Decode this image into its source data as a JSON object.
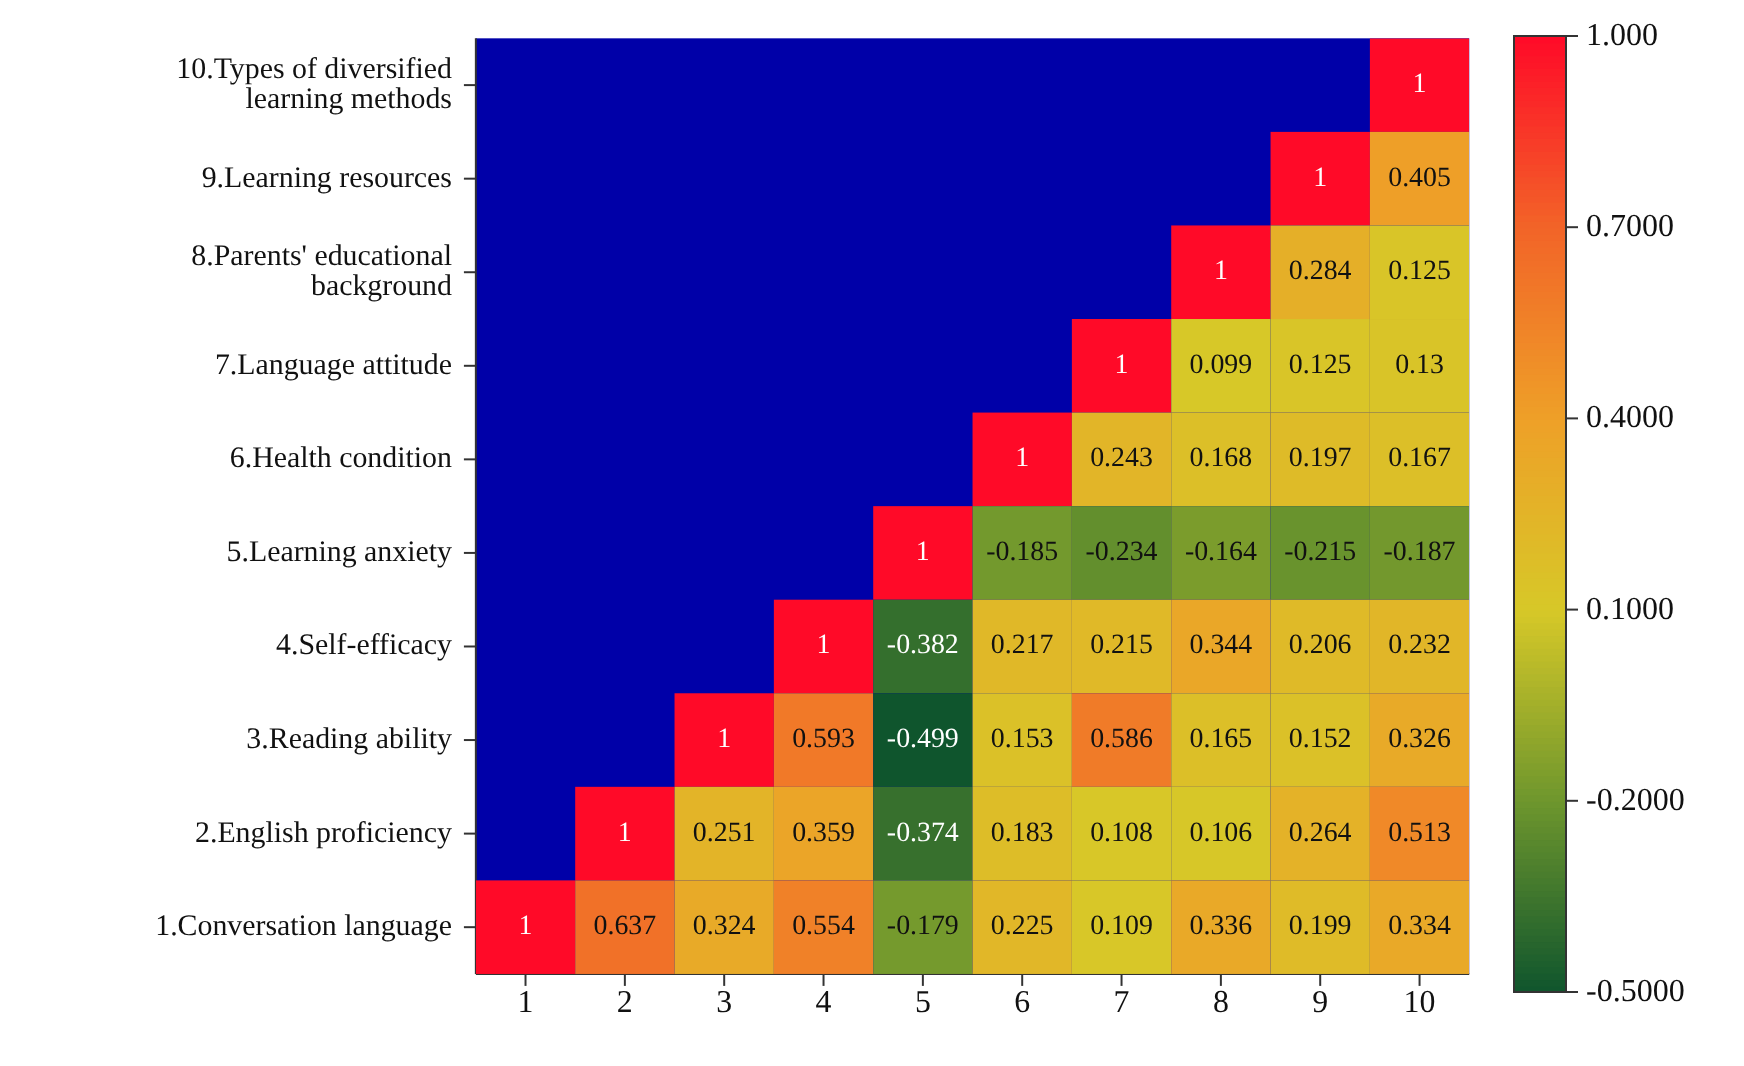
{
  "chart_data": {
    "type": "heatmap",
    "categories": [
      "1",
      "2",
      "3",
      "4",
      "5",
      "6",
      "7",
      "8",
      "9",
      "10"
    ],
    "y_categories": [
      "10.Types of diversified learning methods",
      "9.Learning resources",
      "8.Parents' educational background",
      "7.Language attitude",
      "6.Health condition",
      "5.Learning anxiety",
      "4.Self-efficacy",
      "3.Reading ability",
      "2.English proficiency",
      "1.Conversation language"
    ],
    "cells": [
      [
        null,
        null,
        null,
        null,
        null,
        null,
        null,
        null,
        null,
        1
      ],
      [
        null,
        null,
        null,
        null,
        null,
        null,
        null,
        null,
        1,
        0.405
      ],
      [
        null,
        null,
        null,
        null,
        null,
        null,
        null,
        1,
        0.284,
        0.125
      ],
      [
        null,
        null,
        null,
        null,
        null,
        null,
        1,
        0.099,
        0.125,
        0.13
      ],
      [
        null,
        null,
        null,
        null,
        null,
        1,
        0.243,
        0.168,
        0.197,
        0.167
      ],
      [
        null,
        null,
        null,
        null,
        1,
        -0.185,
        -0.234,
        -0.164,
        -0.215,
        -0.187
      ],
      [
        null,
        null,
        null,
        1,
        -0.382,
        0.217,
        0.215,
        0.344,
        0.206,
        0.232
      ],
      [
        null,
        null,
        1,
        0.593,
        -0.499,
        0.153,
        0.586,
        0.165,
        0.152,
        0.326
      ],
      [
        null,
        1,
        0.251,
        0.359,
        -0.374,
        0.183,
        0.108,
        0.106,
        0.264,
        0.513
      ],
      [
        1,
        0.637,
        0.324,
        0.554,
        -0.179,
        0.225,
        0.109,
        0.336,
        0.199,
        0.334
      ]
    ],
    "clim": [
      -0.5,
      1
    ],
    "cticks": [
      {
        "value": 1,
        "label": "1.000"
      },
      {
        "value": 0.7,
        "label": "0.7000"
      },
      {
        "value": 0.4,
        "label": "0.4000"
      },
      {
        "value": 0.1,
        "label": "0.1000"
      },
      {
        "value": -0.2,
        "label": "-0.2000"
      },
      {
        "value": -0.5,
        "label": "-0.5000"
      }
    ],
    "data_labels": true
  }
}
